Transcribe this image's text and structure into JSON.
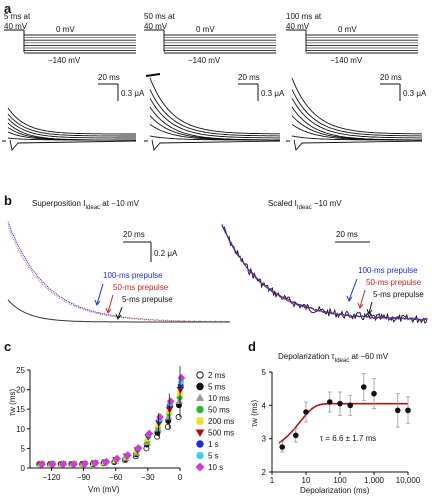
{
  "panel_a": {
    "label": "a",
    "protocols": [
      {
        "prepulse_line1": "5 ms at",
        "prepulse_line2": "40 mV",
        "hold_label": "0 mV",
        "hyper_label": "−140 mV"
      },
      {
        "prepulse_line1": "50 ms at",
        "prepulse_line2": "40 mV",
        "hold_label": "0 mV",
        "hyper_label": "−140 mV"
      },
      {
        "prepulse_line1": "100 ms at",
        "prepulse_line2": "40 mV",
        "hold_label": "0 mV",
        "hyper_label": "−140 mV"
      }
    ],
    "scale_time": "20 ms",
    "scale_current": "0.3 μA"
  },
  "panel_b": {
    "label": "b",
    "left_title_prefix": "Superposition I",
    "left_title_sub": "Ideac",
    "left_title_suffix": " at −10 mV",
    "right_title_prefix": "Scaled I",
    "right_title_sub": "Ideac",
    "right_title_suffix": " −10 mV",
    "scale_time": "20 ms",
    "scale_current": "0.2 μA",
    "right_scale_time": "20 ms",
    "legend": [
      {
        "text": "100-ms prepulse",
        "color": "#1a2fd6"
      },
      {
        "text": "50-ms prepulse",
        "color": "#d42020"
      },
      {
        "text": "5-ms prepulse",
        "color": "#111111"
      }
    ]
  },
  "panel_c": {
    "label": "c",
    "chart_data": {
      "type": "scatter",
      "xlabel": "Vm (mV)",
      "ylabel": "τw (ms)",
      "xlim": [
        -140,
        0
      ],
      "ylim": [
        0,
        25
      ],
      "x_ticks": [
        "−120",
        "−90",
        "−60",
        "−30",
        "0"
      ],
      "y_ticks": [
        "0",
        "5",
        "10",
        "15",
        "20",
        "25"
      ],
      "x": [
        -130,
        -120,
        -110,
        -100,
        -90,
        -80,
        -70,
        -60,
        -50,
        -40,
        -30,
        -20,
        -10,
        0
      ],
      "series": [
        {
          "name": "2 ms",
          "color": "#ffffff",
          "values": [
            1,
            1,
            1,
            1,
            1,
            1,
            1.2,
            1.5,
            2.0,
            3.0,
            5.0,
            8.0,
            10.5,
            13
          ]
        },
        {
          "name": "5 ms",
          "color": "#111111",
          "values": [
            1,
            1,
            1,
            1,
            1.05,
            1.1,
            1.3,
            1.7,
            2.3,
            3.5,
            6.0,
            9.0,
            12.0,
            16
          ]
        },
        {
          "name": "10 ms",
          "color": "#9a9a9a",
          "values": [
            1,
            1,
            1,
            1,
            1.05,
            1.15,
            1.35,
            1.8,
            2.5,
            3.8,
            6.5,
            10.0,
            13.0,
            17
          ]
        },
        {
          "name": "50 ms",
          "color": "#2fb52f",
          "values": [
            1,
            1,
            1,
            1,
            1.05,
            1.2,
            1.4,
            1.9,
            2.7,
            4.2,
            7.0,
            10.5,
            14.0,
            18
          ]
        },
        {
          "name": "200 ms",
          "color": "#f0e030",
          "values": [
            1,
            1,
            1,
            1,
            1.1,
            1.2,
            1.45,
            2.0,
            2.8,
            4.4,
            7.5,
            11.0,
            14.5,
            19
          ]
        },
        {
          "name": "500 ms",
          "color": "#b01010",
          "values": [
            1,
            1,
            1,
            1,
            1.1,
            1.25,
            1.5,
            2.1,
            3.0,
            4.6,
            8.0,
            11.5,
            15.0,
            20
          ]
        },
        {
          "name": "1 s",
          "color": "#1a2fd6",
          "values": [
            1,
            1,
            1,
            1,
            1.1,
            1.25,
            1.55,
            2.2,
            3.1,
            4.8,
            8.3,
            12.0,
            16.0,
            21
          ]
        },
        {
          "name": "5 s",
          "color": "#3ccfe8",
          "values": [
            1,
            1,
            1,
            1,
            1.1,
            1.3,
            1.6,
            2.3,
            3.2,
            5.0,
            8.6,
            12.5,
            16.5,
            22
          ]
        },
        {
          "name": "10 s",
          "color": "#d23ad2",
          "values": [
            1,
            1,
            1,
            1,
            1.1,
            1.3,
            1.6,
            2.4,
            3.3,
            5.1,
            8.8,
            13.0,
            17.0,
            23
          ]
        }
      ]
    }
  },
  "panel_d": {
    "label": "d",
    "title_prefix": "Depolarization τ",
    "title_sub": "Ideac",
    "title_suffix": " at −60 mV",
    "annotation": "τ = 6.6 ± 1.7 ms",
    "chart_data": {
      "type": "scatter",
      "xlabel": "Depolarization (ms)",
      "ylabel": "τw (ms)",
      "x_scale": "log",
      "xlim": [
        1,
        10000
      ],
      "ylim": [
        2,
        5
      ],
      "x_ticks": [
        "1",
        "10",
        "100",
        "1,000",
        "10,000"
      ],
      "y_ticks": [
        "2",
        "3",
        "4",
        "5"
      ],
      "x": [
        2,
        5,
        10,
        50,
        100,
        200,
        500,
        1000,
        5000,
        10000
      ],
      "values": [
        2.75,
        3.1,
        3.8,
        4.1,
        4.05,
        4.0,
        4.55,
        4.35,
        3.85,
        3.85
      ],
      "errors": [
        0.15,
        0.2,
        0.3,
        0.3,
        0.35,
        0.3,
        0.4,
        0.45,
        0.5,
        0.4
      ],
      "fit_color": "#b81414"
    }
  }
}
